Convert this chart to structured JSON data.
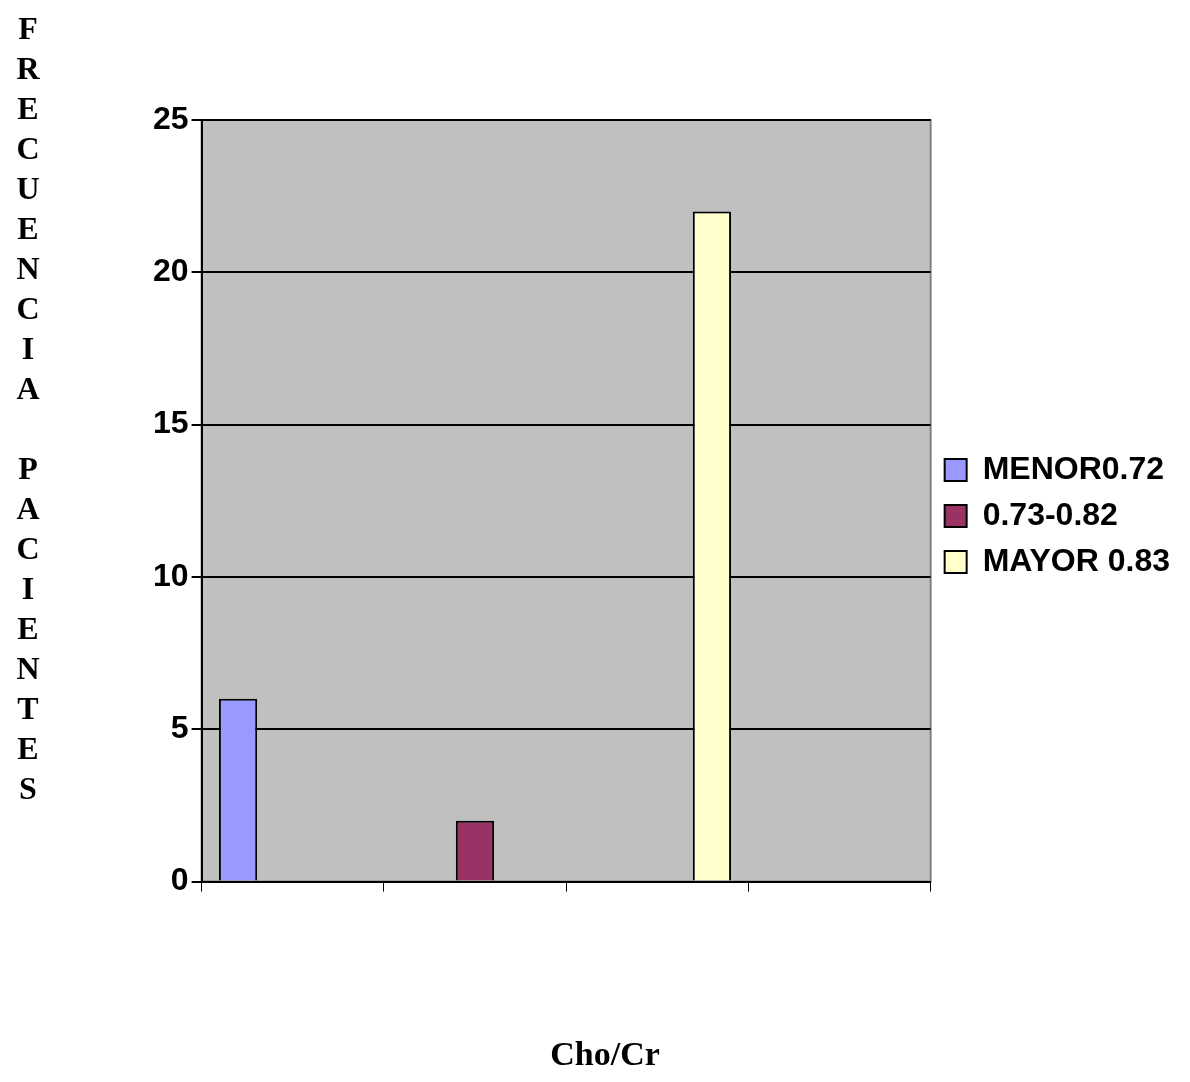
{
  "chart_data": {
    "type": "bar",
    "xlabel": "Cho/Cr",
    "ylabel": "FRECUENCIA PACIENTES",
    "categories": [
      null,
      null,
      null,
      null
    ],
    "series": [
      {
        "name": "MENOR0.72",
        "color": "#9999ff",
        "values": [
          6,
          null,
          null,
          null
        ]
      },
      {
        "name": "0.73-0.82",
        "color": "#993366",
        "values": [
          null,
          2,
          null,
          null
        ]
      },
      {
        "name": "MAYOR 0.83",
        "color": "#ffffcc",
        "values": [
          null,
          null,
          22,
          null
        ]
      }
    ],
    "ylim": [
      0,
      25
    ],
    "yticks": [
      0,
      5,
      10,
      15,
      20,
      25
    ],
    "grid": "y",
    "legend": "right"
  }
}
